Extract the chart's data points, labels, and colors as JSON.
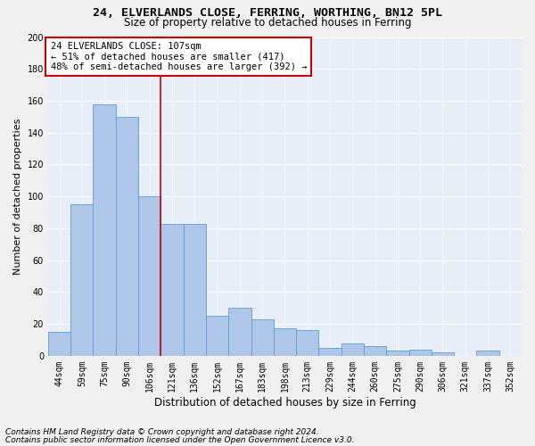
{
  "title_line1": "24, ELVERLANDS CLOSE, FERRING, WORTHING, BN12 5PL",
  "title_line2": "Size of property relative to detached houses in Ferring",
  "xlabel": "Distribution of detached houses by size in Ferring",
  "ylabel": "Number of detached properties",
  "bar_labels": [
    "44sqm",
    "59sqm",
    "75sqm",
    "90sqm",
    "106sqm",
    "121sqm",
    "136sqm",
    "152sqm",
    "167sqm",
    "183sqm",
    "198sqm",
    "213sqm",
    "229sqm",
    "244sqm",
    "260sqm",
    "275sqm",
    "290sqm",
    "306sqm",
    "321sqm",
    "337sqm",
    "352sqm"
  ],
  "bar_values": [
    15,
    95,
    158,
    150,
    100,
    83,
    83,
    25,
    30,
    23,
    17,
    16,
    5,
    8,
    6,
    3,
    4,
    2,
    0,
    3,
    0
  ],
  "bar_color": "#aec6e8",
  "bar_edgecolor": "#5a9fd4",
  "vline_x": 4.5,
  "vline_color": "#cc0000",
  "annotation_title": "24 ELVERLANDS CLOSE: 107sqm",
  "annotation_line1": "← 51% of detached houses are smaller (417)",
  "annotation_line2": "48% of semi-detached houses are larger (392) →",
  "annotation_box_edgecolor": "#cc0000",
  "footnote1": "Contains HM Land Registry data © Crown copyright and database right 2024.",
  "footnote2": "Contains public sector information licensed under the Open Government Licence v3.0.",
  "ylim": [
    0,
    200
  ],
  "yticks": [
    0,
    20,
    40,
    60,
    80,
    100,
    120,
    140,
    160,
    180,
    200
  ],
  "fig_background": "#f0f0f0",
  "ax_background": "#e8eef8",
  "grid_color": "#ffffff",
  "title1_fontsize": 9.5,
  "title2_fontsize": 8.5,
  "xlabel_fontsize": 8.5,
  "ylabel_fontsize": 8,
  "tick_fontsize": 7,
  "annotation_fontsize": 7.5,
  "footnote_fontsize": 6.5
}
